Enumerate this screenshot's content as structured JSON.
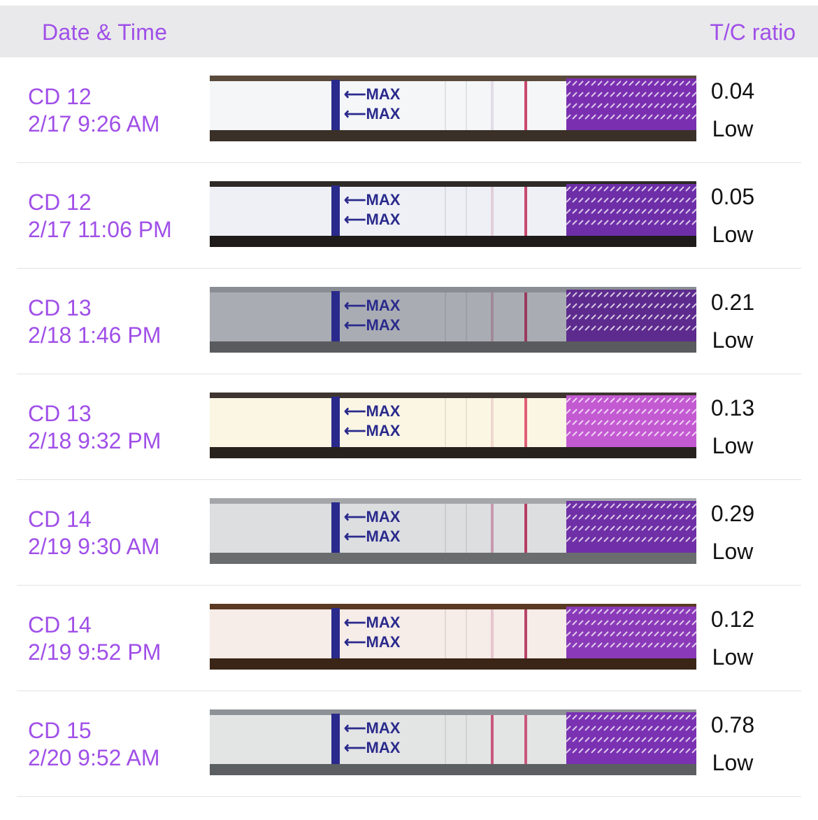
{
  "header": {
    "left_label": "Date & Time",
    "right_label": "T/C ratio"
  },
  "strip_text": "⟵MAX",
  "tests": [
    {
      "cycle_day": "CD 12",
      "datetime": "2/17 9:26 AM",
      "ratio": "0.04",
      "level": "Low",
      "colors": {
        "bg": "#5a4a3c",
        "strip": "#f4f6f8",
        "handle": "#7a2fb0",
        "lineT": "#e4dce6",
        "lineC": "#c94a6e"
      }
    },
    {
      "cycle_day": "CD 12",
      "datetime": "2/17 11:06 PM",
      "ratio": "0.05",
      "level": "Low",
      "colors": {
        "bg": "#2e2a28",
        "strip": "#eef0f6",
        "handle": "#6e2ea8",
        "lineT": "#e2cfd8",
        "lineC": "#c64a70"
      }
    },
    {
      "cycle_day": "CD 13",
      "datetime": "2/18 1:46 PM",
      "ratio": "0.21",
      "level": "Low",
      "colors": {
        "bg": "#8a8d93",
        "strip": "#a9adb3",
        "handle": "#5d2a8e",
        "lineT": "#a08a98",
        "lineC": "#9a3a5e"
      }
    },
    {
      "cycle_day": "CD 13",
      "datetime": "2/18 9:32 PM",
      "ratio": "0.13",
      "level": "Low",
      "colors": {
        "bg": "#3e3530",
        "strip": "#fbf6e4",
        "handle": "#c35ad2",
        "lineT": "#efd8cf",
        "lineC": "#e0607a"
      }
    },
    {
      "cycle_day": "CD 14",
      "datetime": "2/19 9:30 AM",
      "ratio": "0.29",
      "level": "Low",
      "colors": {
        "bg": "#a4a6aa",
        "strip": "#dcdee0",
        "handle": "#6f2fa6",
        "lineT": "#c79aac",
        "lineC": "#b73e62"
      }
    },
    {
      "cycle_day": "CD 14",
      "datetime": "2/19 9:52 PM",
      "ratio": "0.12",
      "level": "Low",
      "colors": {
        "bg": "#5a3a22",
        "strip": "#f6ece8",
        "handle": "#8a3ab8",
        "lineT": "#e6c6ce",
        "lineC": "#b8456a"
      }
    },
    {
      "cycle_day": "CD 15",
      "datetime": "2/20 9:52 AM",
      "ratio": "0.78",
      "level": "Low",
      "colors": {
        "bg": "#8e9296",
        "strip": "#e3e4e4",
        "handle": "#7a31b2",
        "lineT": "#c9587c",
        "lineC": "#c9587c"
      }
    }
  ]
}
